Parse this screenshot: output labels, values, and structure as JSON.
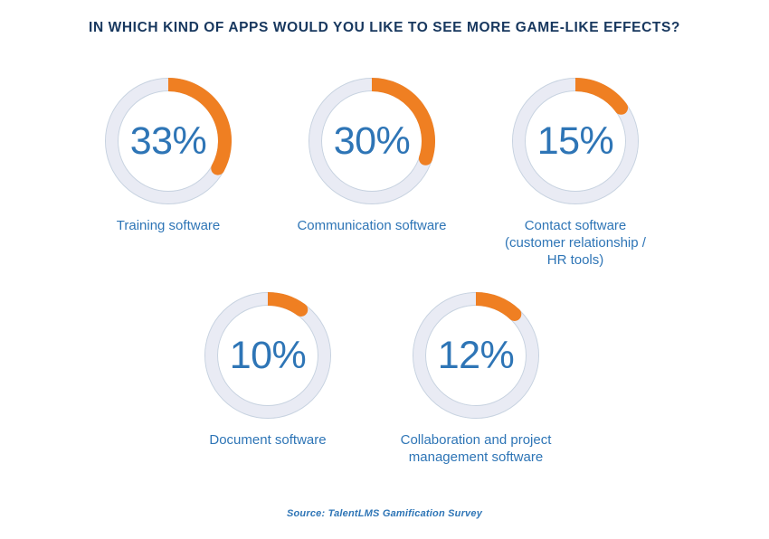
{
  "title": "IN WHICH KIND OF APPS WOULD YOU LIKE TO SEE MORE GAME-LIKE EFFECTS?",
  "colors": {
    "title_navy": "#17375e",
    "value_blue": "#2e75b6",
    "label_blue": "#2e75b6",
    "arc_orange": "#ef7f22",
    "track_gray": "#e9ebf4",
    "hairline_gray": "#c7d2e0",
    "background": "#ffffff"
  },
  "chart_data": {
    "type": "pie",
    "subtype": "donut-gauges",
    "title": "IN WHICH KIND OF APPS WOULD YOU LIKE TO SEE MORE GAME-LIKE EFFECTS?",
    "unit": "%",
    "legend_position": "none",
    "items": [
      {
        "label": "Training software",
        "value": 33,
        "value_label": "33%"
      },
      {
        "label": "Communication software",
        "value": 30,
        "value_label": "30%"
      },
      {
        "label": "Contact software\n(customer relationship /\nHR tools)",
        "value": 15,
        "value_label": "15%"
      },
      {
        "label": "Document software",
        "value": 10,
        "value_label": "10%"
      },
      {
        "label": "Collaboration and project\nmanagement software",
        "value": 12,
        "value_label": "12%"
      }
    ],
    "source": "Source: TalentLMS Gamification Survey"
  }
}
